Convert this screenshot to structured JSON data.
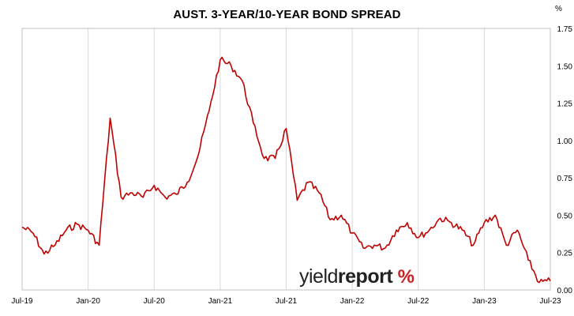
{
  "title": "AUST. 3-YEAR/10-YEAR BOND SPREAD",
  "unit_label": "%",
  "watermark": {
    "part1": "yield",
    "part2": "report",
    "symbol": "%"
  },
  "colors": {
    "line": "#c00000",
    "gridline": "#d9d9d9",
    "frame": "#c0c0c0"
  },
  "chart_data": {
    "type": "line",
    "title": "AUST. 3-YEAR/10-YEAR BOND SPREAD",
    "xlabel": "",
    "ylabel": "%",
    "ylim": [
      0,
      1.75
    ],
    "y_ticks": [
      0,
      0.25,
      0.5,
      0.75,
      1.0,
      1.25,
      1.5,
      1.75
    ],
    "y_tick_labels": [
      "0.00",
      "0.25",
      "0.50",
      "0.75",
      "1.00",
      "1.25",
      "1.50",
      "1.75"
    ],
    "x_ticks": [
      "2019-07",
      "2020-01",
      "2020-07",
      "2021-01",
      "2021-07",
      "2022-01",
      "2022-07",
      "2023-01",
      "2023-07"
    ],
    "x_tick_labels": [
      "Jul-19",
      "Jan-20",
      "Jul-20",
      "Jan-21",
      "Jul-21",
      "Jan-22",
      "Jul-22",
      "Jan-23",
      "Jul-23"
    ],
    "xlim": [
      "2019-07",
      "2023-07"
    ],
    "grid": "vertical",
    "legend": "none",
    "series": [
      {
        "x": [
          "2019-07",
          "2019-08",
          "2019-09",
          "2019-10",
          "2019-11",
          "2019-12",
          "2020-01",
          "2020-02",
          "2020-03",
          "2020-04",
          "2020-05",
          "2020-06",
          "2020-07",
          "2020-08",
          "2020-09",
          "2020-10",
          "2020-11",
          "2020-12",
          "2021-01",
          "2021-02",
          "2021-03",
          "2021-04",
          "2021-05",
          "2021-06",
          "2021-07",
          "2021-08",
          "2021-09",
          "2021-10",
          "2021-11",
          "2021-12",
          "2022-01",
          "2022-02",
          "2022-03",
          "2022-04",
          "2022-05",
          "2022-06",
          "2022-07",
          "2022-08",
          "2022-09",
          "2022-10",
          "2022-11",
          "2022-12",
          "2023-01",
          "2023-02",
          "2023-03",
          "2023-04",
          "2023-05",
          "2023-06",
          "2023-07"
        ],
        "values": [
          0.42,
          0.38,
          0.24,
          0.3,
          0.4,
          0.44,
          0.4,
          0.3,
          1.15,
          0.62,
          0.65,
          0.62,
          0.7,
          0.62,
          0.64,
          0.72,
          0.9,
          1.2,
          1.54,
          1.5,
          1.4,
          1.12,
          0.88,
          0.88,
          1.08,
          0.6,
          0.72,
          0.65,
          0.47,
          0.5,
          0.38,
          0.28,
          0.3,
          0.28,
          0.4,
          0.45,
          0.35,
          0.4,
          0.48,
          0.45,
          0.4,
          0.3,
          0.45,
          0.5,
          0.3,
          0.4,
          0.2,
          0.05,
          0.06
        ]
      }
    ]
  }
}
